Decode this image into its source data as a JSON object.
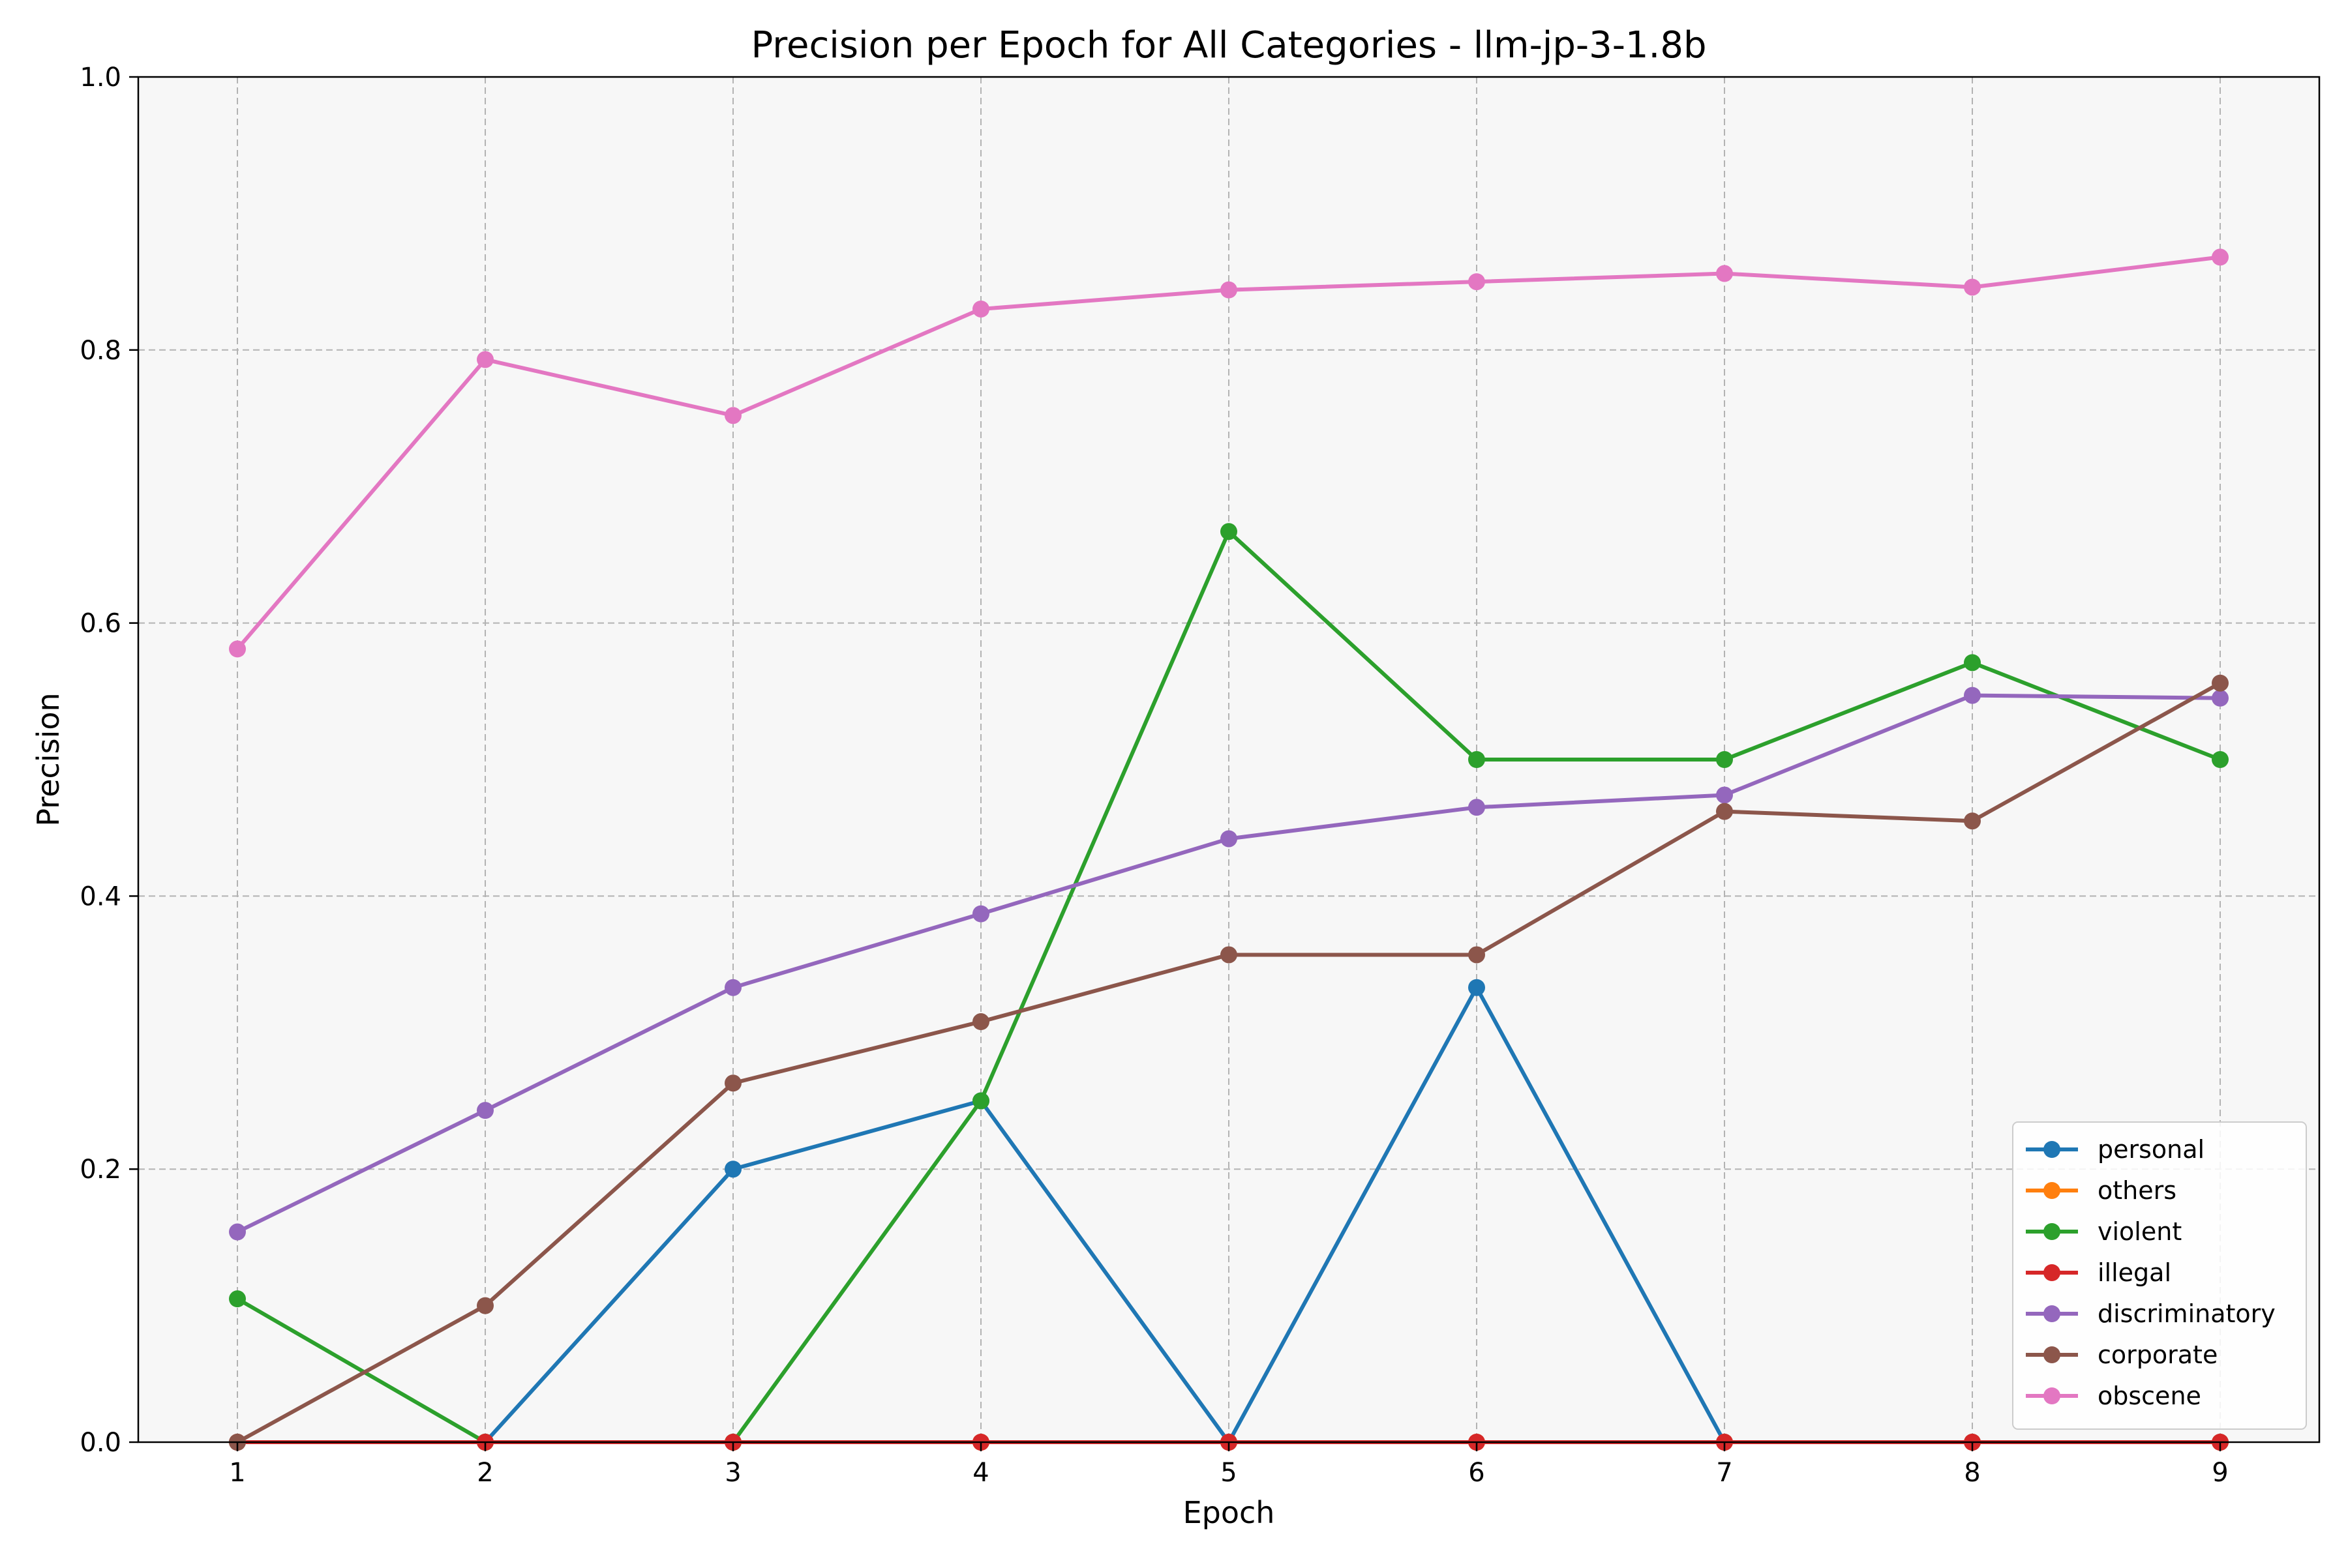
{
  "chart_data": {
    "type": "line",
    "title": "Precision per Epoch for All Categories - llm-jp-3-1.8b",
    "xlabel": "Epoch",
    "ylabel": "Precision",
    "x": [
      1,
      2,
      3,
      4,
      5,
      6,
      7,
      8,
      9
    ],
    "xlim": [
      0.6,
      9.4
    ],
    "ylim": [
      0.0,
      1.0
    ],
    "yticks": [
      0.0,
      0.2,
      0.4,
      0.6,
      0.8,
      1.0
    ],
    "ytick_labels": [
      "0.0",
      "0.2",
      "0.4",
      "0.6",
      "0.8",
      "1.0"
    ],
    "xtick_labels": [
      "1",
      "2",
      "3",
      "4",
      "5",
      "6",
      "7",
      "8",
      "9"
    ],
    "grid": true,
    "legend_position": "lower-right",
    "background_color": "#f7f7f7",
    "series": [
      {
        "name": "personal",
        "color": "#1f77b4",
        "values": [
          0.0,
          0.0,
          0.2,
          0.25,
          0.0,
          0.333,
          0.0,
          0.0,
          0.0
        ]
      },
      {
        "name": "others",
        "color": "#ff7f0e",
        "values": [
          0.0,
          0.0,
          0.0,
          0.0,
          0.0,
          0.0,
          0.0,
          0.0,
          0.0
        ]
      },
      {
        "name": "violent",
        "color": "#2ca02c",
        "values": [
          0.105,
          0.0,
          0.0,
          0.25,
          0.667,
          0.5,
          0.5,
          0.571,
          0.5
        ]
      },
      {
        "name": "illegal",
        "color": "#d62728",
        "values": [
          0.0,
          0.0,
          0.0,
          0.0,
          0.0,
          0.0,
          0.0,
          0.0,
          0.0
        ]
      },
      {
        "name": "discriminatory",
        "color": "#9467bd",
        "values": [
          0.154,
          0.243,
          0.333,
          0.387,
          0.442,
          0.465,
          0.474,
          0.547,
          0.545
        ]
      },
      {
        "name": "corporate",
        "color": "#8c564b",
        "values": [
          0.0,
          0.1,
          0.263,
          0.308,
          0.357,
          0.357,
          0.462,
          0.455,
          0.556
        ]
      },
      {
        "name": "obscene",
        "color": "#e377c2",
        "values": [
          0.581,
          0.793,
          0.752,
          0.83,
          0.844,
          0.85,
          0.856,
          0.846,
          0.868
        ]
      }
    ]
  }
}
